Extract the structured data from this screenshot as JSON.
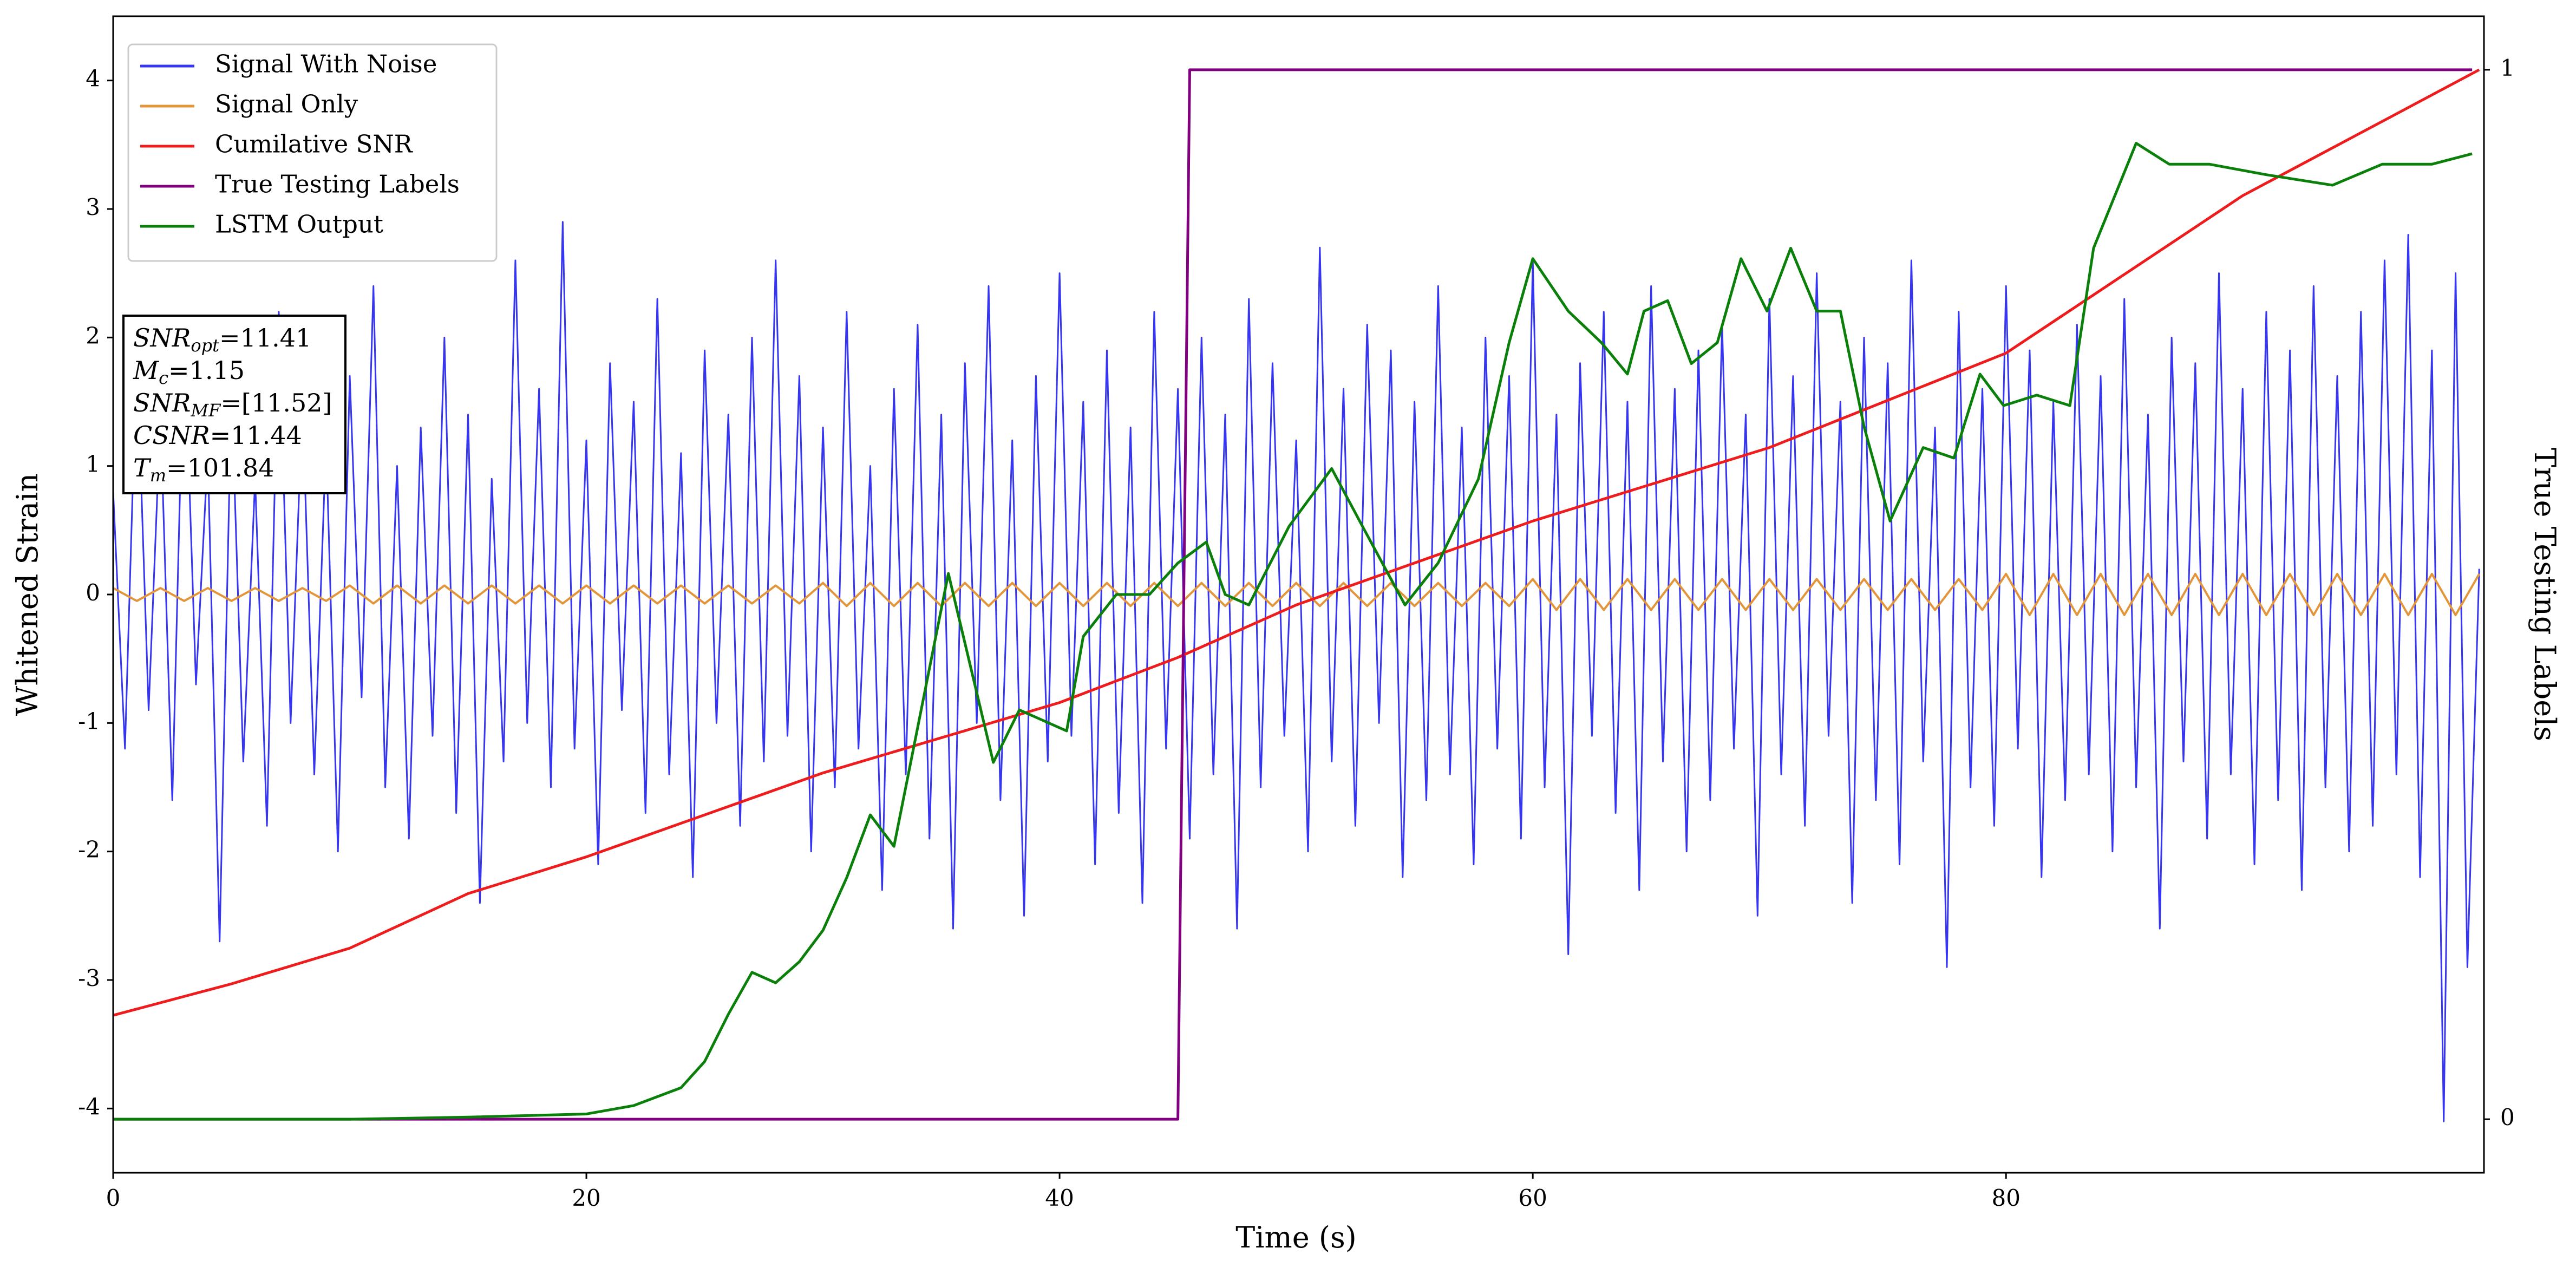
{
  "chart_data": {
    "type": "line",
    "xlabel": "Time (s)",
    "ylabel": "Whitened Strain",
    "y2label": "True Testing Labels",
    "xlim": [
      0,
      100.2
    ],
    "xticks": [
      0,
      20,
      40,
      60,
      80
    ],
    "ylim": [
      -4.5,
      4.5
    ],
    "yticks": [
      -4,
      -3,
      -2,
      -1,
      0,
      1,
      2,
      3,
      4
    ],
    "y2lim": [
      -0.051,
      1.051
    ],
    "y2ticks": [
      0,
      1
    ],
    "legend": "upper left",
    "annotation": [
      {
        "base": "SNR",
        "sub": "opt",
        "text": "=11.41"
      },
      {
        "base": "M",
        "sub": "c",
        "text": "=1.15"
      },
      {
        "base": "SNR",
        "sub": "MF",
        "text": "=[11.52]"
      },
      {
        "base": "CSNR",
        "text": "=11.44"
      },
      {
        "base": "T",
        "sub": "m",
        "text": "=101.84"
      }
    ],
    "series": [
      {
        "name": "Signal With Noise",
        "color": "#3535f2",
        "x": [
          0,
          0.5,
          1,
          1.5,
          2,
          2.5,
          3,
          3.5,
          4,
          4.5,
          5,
          5.5,
          6,
          6.5,
          7,
          7.5,
          8,
          8.5,
          9,
          9.5,
          10,
          10.5,
          11,
          11.5,
          12,
          12.5,
          13,
          13.5,
          14,
          14.5,
          15,
          15.5,
          16,
          16.5,
          17,
          17.5,
          18,
          18.5,
          19,
          19.5,
          20,
          20.5,
          21,
          21.5,
          22,
          22.5,
          23,
          23.5,
          24,
          24.5,
          25,
          25.5,
          26,
          26.5,
          27,
          27.5,
          28,
          28.5,
          29,
          29.5,
          30,
          30.5,
          31,
          31.5,
          32,
          32.5,
          33,
          33.5,
          34,
          34.5,
          35,
          35.5,
          36,
          36.5,
          37,
          37.5,
          38,
          38.5,
          39,
          39.5,
          40,
          40.5,
          41,
          41.5,
          42,
          42.5,
          43,
          43.5,
          44,
          44.5,
          45,
          45.5,
          46,
          46.5,
          47,
          47.5,
          48,
          48.5,
          49,
          49.5,
          50,
          50.5,
          51,
          51.5,
          52,
          52.5,
          53,
          53.5,
          54,
          54.5,
          55,
          55.5,
          56,
          56.5,
          57,
          57.5,
          58,
          58.5,
          59,
          59.5,
          60,
          60.5,
          61,
          61.5,
          62,
          62.5,
          63,
          63.5,
          64,
          64.5,
          65,
          65.5,
          66,
          66.5,
          67,
          67.5,
          68,
          68.5,
          69,
          69.5,
          70,
          70.5,
          71,
          71.5,
          72,
          72.5,
          73,
          73.5,
          74,
          74.5,
          75,
          75.5,
          76,
          76.5,
          77,
          77.5,
          78,
          78.5,
          79,
          79.5,
          80,
          80.5,
          81,
          81.5,
          82,
          82.5,
          83,
          83.5,
          84,
          84.5,
          85,
          85.5,
          86,
          86.5,
          87,
          87.5,
          88,
          88.5,
          89,
          89.5,
          90,
          90.5,
          91,
          91.5,
          92,
          92.5,
          93,
          93.5,
          94,
          94.5,
          95,
          95.5,
          96,
          96.5,
          97,
          97.5,
          98,
          98.5,
          99,
          99.5,
          100
        ],
        "values": [
          0.8,
          -1.2,
          1.9,
          -0.9,
          1.4,
          -1.6,
          2.1,
          -0.7,
          1.1,
          -2.7,
          1.6,
          -1.3,
          0.9,
          -1.8,
          2.2,
          -1.0,
          1.5,
          -1.4,
          1.2,
          -2.0,
          1.7,
          -0.8,
          2.4,
          -1.5,
          1.0,
          -1.9,
          1.3,
          -1.1,
          2.0,
          -1.7,
          1.4,
          -2.4,
          0.9,
          -1.3,
          2.6,
          -1.0,
          1.6,
          -1.5,
          2.9,
          -1.2,
          1.2,
          -2.1,
          1.8,
          -0.9,
          1.5,
          -1.7,
          2.3,
          -1.4,
          1.1,
          -2.2,
          1.9,
          -1.0,
          1.4,
          -1.8,
          2.0,
          -1.3,
          2.6,
          -1.1,
          1.7,
          -2.0,
          1.3,
          -1.5,
          2.2,
          -1.2,
          1.0,
          -2.3,
          1.6,
          -1.4,
          2.1,
          -1.9,
          1.4,
          -2.6,
          1.8,
          -1.0,
          2.4,
          -1.6,
          1.2,
          -2.5,
          1.7,
          -1.3,
          2.5,
          -1.1,
          1.5,
          -2.1,
          1.9,
          -1.7,
          1.3,
          -2.4,
          2.2,
          -1.2,
          1.6,
          -1.9,
          2.0,
          -1.4,
          1.4,
          -2.6,
          2.3,
          -1.5,
          1.8,
          -1.1,
          1.2,
          -2.0,
          2.7,
          -1.3,
          1.6,
          -1.8,
          2.1,
          -1.0,
          1.9,
          -2.2,
          1.5,
          -1.6,
          2.4,
          -1.4,
          1.3,
          -2.1,
          2.0,
          -1.2,
          1.7,
          -1.9,
          2.6,
          -1.5,
          1.4,
          -2.8,
          1.8,
          -1.1,
          2.2,
          -1.7,
          1.5,
          -2.3,
          2.4,
          -1.3,
          1.6,
          -2.0,
          1.9,
          -1.6,
          2.1,
          -1.2,
          1.4,
          -2.5,
          2.3,
          -1.4,
          1.7,
          -1.8,
          2.5,
          -1.1,
          1.5,
          -2.4,
          2.0,
          -1.6,
          1.8,
          -2.1,
          2.6,
          -1.3,
          1.3,
          -2.9,
          2.2,
          -1.5,
          1.6,
          -1.8,
          2.4,
          -1.2,
          1.9,
          -2.2,
          1.5,
          -1.6,
          2.1,
          -1.4,
          1.7,
          -2.0,
          2.3,
          -1.5,
          1.4,
          -2.6,
          2.0,
          -1.3,
          1.8,
          -1.9,
          2.5,
          -1.4,
          1.6,
          -2.1,
          2.2,
          -1.6,
          1.9,
          -2.3,
          2.4,
          -1.5,
          1.7,
          -2.0,
          2.2,
          -1.8,
          2.6,
          -1.4,
          2.8,
          -2.2,
          1.9,
          -4.1,
          2.5,
          -2.9,
          0.2
        ]
      },
      {
        "name": "Signal Only",
        "color": "#e3953a",
        "x": [
          0,
          1,
          2,
          3,
          4,
          5,
          6,
          7,
          8,
          9,
          10,
          11,
          12,
          13,
          14,
          15,
          16,
          17,
          18,
          19,
          20,
          21,
          22,
          23,
          24,
          25,
          26,
          27,
          28,
          29,
          30,
          31,
          32,
          33,
          34,
          35,
          36,
          37,
          38,
          39,
          40,
          41,
          42,
          43,
          44,
          45,
          46,
          47,
          48,
          49,
          50,
          51,
          52,
          53,
          54,
          55,
          56,
          57,
          58,
          59,
          60,
          61,
          62,
          63,
          64,
          65,
          66,
          67,
          68,
          69,
          70,
          71,
          72,
          73,
          74,
          75,
          76,
          77,
          78,
          79,
          80,
          81,
          82,
          83,
          84,
          85,
          86,
          87,
          88,
          89,
          90,
          91,
          92,
          93,
          94,
          95,
          96,
          97,
          98,
          99,
          100
        ],
        "values": [
          0.05,
          -0.05,
          0.05,
          -0.05,
          0.05,
          -0.05,
          0.05,
          -0.05,
          0.05,
          -0.05,
          0.07,
          -0.07,
          0.07,
          -0.07,
          0.07,
          -0.07,
          0.07,
          -0.07,
          0.07,
          -0.07,
          0.07,
          -0.07,
          0.07,
          -0.07,
          0.07,
          -0.07,
          0.07,
          -0.07,
          0.07,
          -0.07,
          0.09,
          -0.09,
          0.09,
          -0.09,
          0.09,
          -0.09,
          0.09,
          -0.09,
          0.09,
          -0.09,
          0.09,
          -0.09,
          0.09,
          -0.09,
          0.09,
          -0.09,
          0.09,
          -0.09,
          0.09,
          -0.09,
          0.09,
          -0.09,
          0.09,
          -0.09,
          0.09,
          -0.09,
          0.09,
          -0.09,
          0.09,
          -0.09,
          0.12,
          -0.12,
          0.12,
          -0.12,
          0.12,
          -0.12,
          0.12,
          -0.12,
          0.12,
          -0.12,
          0.12,
          -0.12,
          0.12,
          -0.12,
          0.12,
          -0.12,
          0.12,
          -0.12,
          0.12,
          -0.12,
          0.16,
          -0.16,
          0.16,
          -0.16,
          0.16,
          -0.16,
          0.16,
          -0.16,
          0.16,
          -0.16,
          0.16,
          -0.16,
          0.16,
          -0.16,
          0.16,
          -0.16,
          0.16,
          -0.16,
          0.16,
          -0.16,
          0.16
        ]
      },
      {
        "name": "Cumilative SNR",
        "color": "#ee1c1c",
        "axis": "y2",
        "x": [
          0,
          5,
          10,
          15,
          20,
          30,
          40,
          45,
          50,
          60,
          70,
          80,
          90,
          100
        ],
        "values": [
          0.099,
          0.129,
          0.163,
          0.215,
          0.25,
          0.33,
          0.397,
          0.44,
          0.49,
          0.57,
          0.64,
          0.73,
          0.88,
          1.0
        ]
      },
      {
        "name": "True Testing Labels",
        "color": "#800080",
        "axis": "y2",
        "x": [
          0,
          45,
          45.5,
          99.7
        ],
        "values": [
          0,
          0,
          1,
          1
        ]
      },
      {
        "name": "LSTM Output",
        "color": "#0a800a",
        "axis": "y2",
        "x": [
          0,
          10,
          15,
          20,
          22,
          24,
          25,
          26,
          27,
          28,
          29,
          30,
          31,
          32,
          33,
          35.3,
          37.2,
          38.3,
          40.3,
          41,
          42.4,
          43.8,
          45,
          46.2,
          47,
          48,
          49.7,
          51.5,
          52.8,
          54.6,
          56,
          57.7,
          59,
          60,
          61.5,
          62.9,
          64,
          64.7,
          65.7,
          66.7,
          67.8,
          68.8,
          69.9,
          70.9,
          72,
          73,
          74,
          75.1,
          76.5,
          77.8,
          78.9,
          79.9,
          81.3,
          82.7,
          83.7,
          85.5,
          86.9,
          88.6,
          91,
          93.8,
          95.9,
          98,
          99.7
        ],
        "values": [
          0,
          0,
          0.002,
          0.005,
          0.013,
          0.03,
          0.055,
          0.1,
          0.14,
          0.13,
          0.15,
          0.18,
          0.23,
          0.29,
          0.26,
          0.52,
          0.34,
          0.39,
          0.37,
          0.46,
          0.5,
          0.5,
          0.53,
          0.55,
          0.5,
          0.49,
          0.565,
          0.62,
          0.565,
          0.49,
          0.53,
          0.61,
          0.74,
          0.82,
          0.77,
          0.74,
          0.71,
          0.77,
          0.78,
          0.72,
          0.74,
          0.82,
          0.77,
          0.83,
          0.77,
          0.77,
          0.66,
          0.57,
          0.64,
          0.63,
          0.71,
          0.68,
          0.69,
          0.68,
          0.83,
          0.93,
          0.91,
          0.91,
          0.9,
          0.89,
          0.91,
          0.91,
          0.92
        ]
      }
    ]
  }
}
